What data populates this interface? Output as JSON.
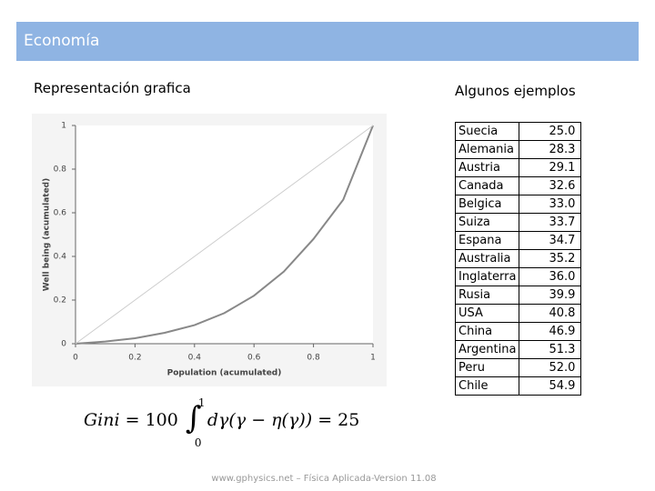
{
  "header": {
    "title": "Economía"
  },
  "left": {
    "title": "Representación grafica"
  },
  "right": {
    "title": "Algunos ejemplos"
  },
  "chart": {
    "type": "line",
    "x": [
      0,
      0.1,
      0.2,
      0.3,
      0.4,
      0.5,
      0.6,
      0.7,
      0.8,
      0.9,
      1
    ],
    "series": [
      {
        "color": "#888888",
        "values": [
          0,
          0.01,
          0.025,
          0.05,
          0.085,
          0.14,
          0.22,
          0.33,
          0.48,
          0.66,
          1
        ]
      },
      {
        "color": "#cccccc",
        "values": [
          0,
          0.1,
          0.2,
          0.3,
          0.4,
          0.5,
          0.6,
          0.7,
          0.8,
          0.9,
          1
        ]
      }
    ],
    "xlim": [
      0,
      1
    ],
    "ylim": [
      0,
      1
    ],
    "xticks": [
      0,
      0.2,
      0.4,
      0.6,
      0.8,
      1
    ],
    "yticks": [
      0,
      0.2,
      0.4,
      0.6,
      0.8,
      1
    ],
    "xlabel": "Population (acumulated)",
    "ylabel": "Well being (acumulated)"
  },
  "formula": {
    "lhs": "Gini = ",
    "coefficient": "100",
    "upper": "1",
    "lower": "0",
    "integrand": "dγ(γ − η(γ)) = ",
    "result": "25"
  },
  "table": {
    "rows": [
      [
        "Suecia",
        "25.0"
      ],
      [
        "Alemania",
        "28.3"
      ],
      [
        "Austria",
        "29.1"
      ],
      [
        "Canada",
        "32.6"
      ],
      [
        "Belgica",
        "33.0"
      ],
      [
        "Suiza",
        "33.7"
      ],
      [
        "Espana",
        "34.7"
      ],
      [
        "Australia",
        "35.2"
      ],
      [
        "Inglaterra",
        "36.0"
      ],
      [
        "Rusia",
        "39.9"
      ],
      [
        "USA",
        "40.8"
      ],
      [
        "China",
        "46.9"
      ],
      [
        "Argentina",
        "51.3"
      ],
      [
        "Peru",
        "52.0"
      ],
      [
        "Chile",
        "54.9"
      ]
    ]
  },
  "footer": {
    "text": "www.gphysics.net – Física Aplicada-Version 11.08"
  }
}
